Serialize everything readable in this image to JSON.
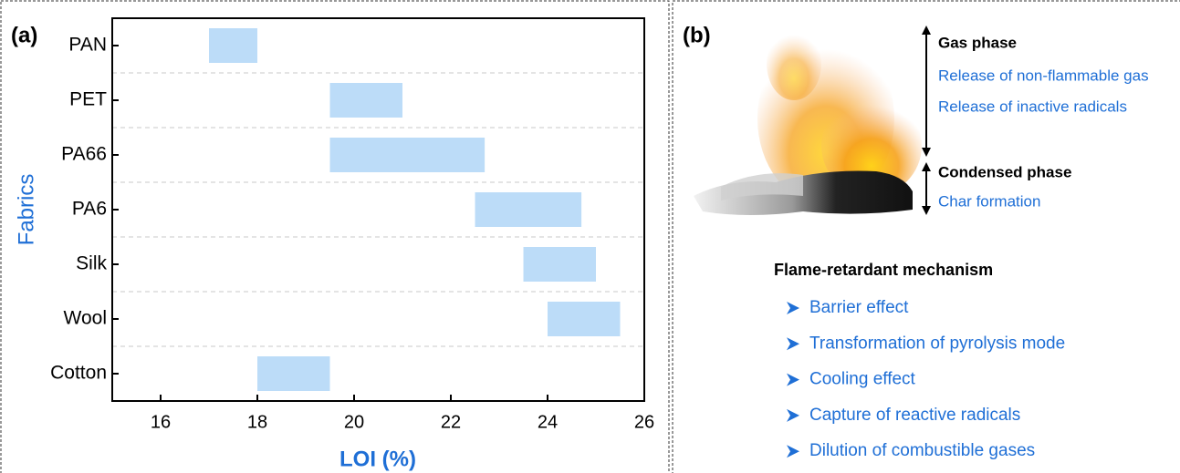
{
  "chart_data": {
    "type": "range-bar",
    "panel_label": "(a)",
    "categories": [
      "PAN",
      "PET",
      "PA66",
      "PA6",
      "Silk",
      "Wool",
      "Cotton"
    ],
    "ranges": [
      [
        17,
        18
      ],
      [
        19.5,
        21
      ],
      [
        19.5,
        22.7
      ],
      [
        22.5,
        24.7
      ],
      [
        23.5,
        25
      ],
      [
        24,
        25.5
      ],
      [
        18,
        19.5
      ]
    ],
    "color": "#bcdcf8",
    "xlabel": "LOI (%)",
    "ylabel": "Fabrics",
    "xlim": [
      15,
      26
    ],
    "xticks": [
      16,
      18,
      20,
      22,
      24,
      26
    ],
    "grid": true
  },
  "panel_b": {
    "label": "(b)",
    "gas_phase": {
      "title": "Gas phase",
      "items": [
        "Release of non-flammable gas",
        "Release of inactive radicals"
      ]
    },
    "condensed_phase": {
      "title": "Condensed phase",
      "items": [
        "Char formation"
      ]
    },
    "mechanism": {
      "title": "Flame-retardant mechanism",
      "items": [
        "Barrier effect",
        "Transformation of pyrolysis mode",
        "Cooling effect",
        "Capture of reactive radicals",
        "Dilution of combustible gases"
      ]
    }
  }
}
